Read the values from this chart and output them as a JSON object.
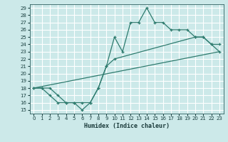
{
  "xlabel": "Humidex (Indice chaleur)",
  "bg_color": "#cce9e9",
  "grid_color": "#ffffff",
  "line_color": "#2e7b6e",
  "xlim": [
    -0.5,
    23.5
  ],
  "ylim": [
    14.5,
    29.5
  ],
  "xticks": [
    0,
    1,
    2,
    3,
    4,
    5,
    6,
    7,
    8,
    9,
    10,
    11,
    12,
    13,
    14,
    15,
    16,
    17,
    18,
    19,
    20,
    21,
    22,
    23
  ],
  "yticks": [
    15,
    16,
    17,
    18,
    19,
    20,
    21,
    22,
    23,
    24,
    25,
    26,
    27,
    28,
    29
  ],
  "line1_x": [
    0,
    1,
    2,
    3,
    4,
    5,
    6,
    7,
    8,
    9,
    10,
    11,
    12,
    13,
    14,
    15,
    16,
    17,
    18,
    19,
    20,
    21,
    22,
    23
  ],
  "line1_y": [
    18,
    18,
    18,
    17,
    16,
    16,
    15,
    16,
    18,
    21,
    25,
    23,
    27,
    27,
    29,
    27,
    27,
    26,
    26,
    26,
    25,
    25,
    24,
    23
  ],
  "line2_x": [
    0,
    1,
    2,
    3,
    4,
    5,
    6,
    7,
    8,
    9,
    10,
    20,
    21,
    22,
    23
  ],
  "line2_y": [
    18,
    18,
    17,
    16,
    16,
    16,
    16,
    16,
    18,
    21,
    22,
    25,
    25,
    24,
    24
  ],
  "line3_x": [
    0,
    23
  ],
  "line3_y": [
    18,
    23
  ]
}
